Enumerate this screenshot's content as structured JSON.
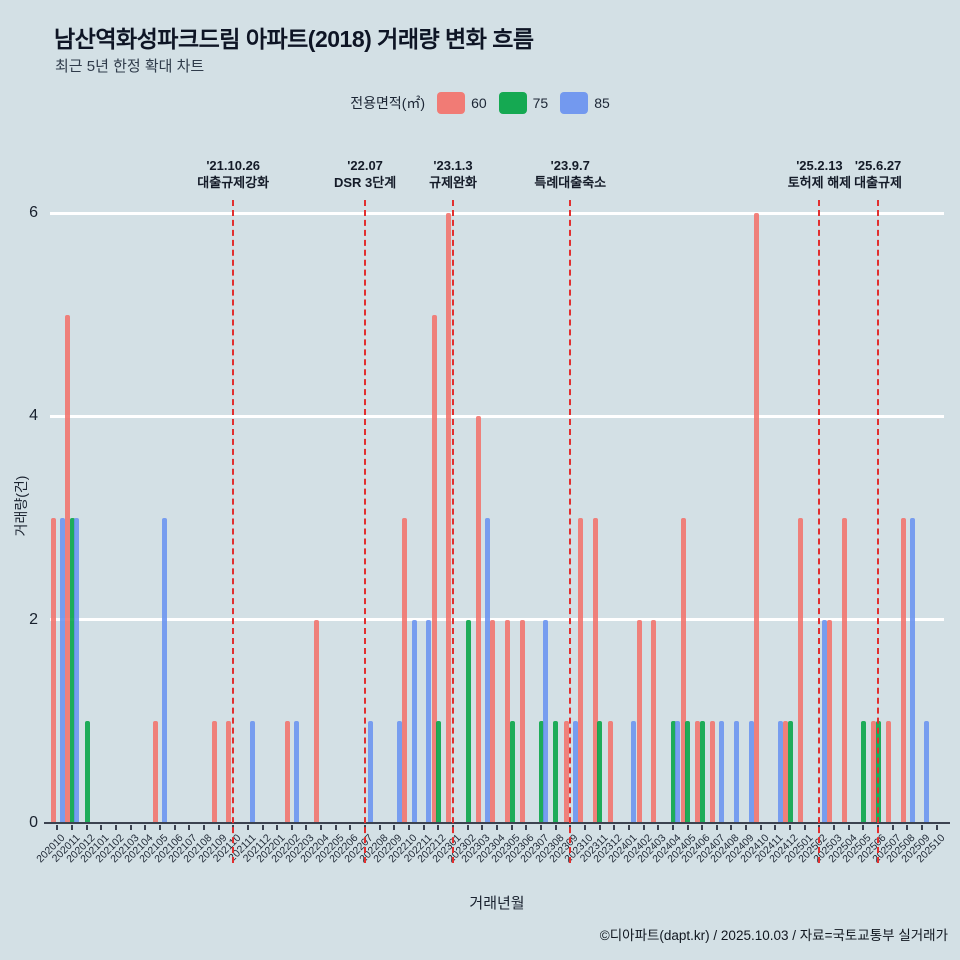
{
  "header": {
    "title": "남산역화성파크드림 아파트(2018) 거래량 변화 흐름",
    "subtitle": "최근 5년 한정 확대 차트"
  },
  "legend": {
    "label": "전용면적(㎡)"
  },
  "axes": {
    "ylabel": "거래량(건)",
    "xlabel": "거래년월"
  },
  "footer": {
    "credit": "©디아파트(dapt.kr) / 2025.10.03 / 자료=국토교통부 실거래가"
  },
  "chart_data": {
    "type": "bar",
    "title": "남산역화성파크드림 아파트(2018) 거래량 변화 흐름",
    "xlabel": "거래년월",
    "ylabel": "거래량(건)",
    "ylim": [
      0,
      6
    ],
    "yticks": [
      0,
      2,
      4,
      6
    ],
    "grid": "horizontal-white",
    "legend_position": "top",
    "background": "#d3e0e5",
    "gridline_color": "#ffffff",
    "annotation_line_color": "#e12f2f",
    "categories": [
      "202010",
      "202011",
      "202012",
      "202101",
      "202102",
      "202103",
      "202104",
      "202105",
      "202106",
      "202107",
      "202108",
      "202109",
      "202110",
      "202111",
      "202112",
      "202201",
      "202202",
      "202203",
      "202204",
      "202205",
      "202206",
      "202207",
      "202208",
      "202209",
      "202210",
      "202211",
      "202212",
      "202301",
      "202302",
      "202303",
      "202304",
      "202305",
      "202306",
      "202307",
      "202308",
      "202309",
      "202310",
      "202311",
      "202312",
      "202401",
      "202402",
      "202403",
      "202404",
      "202405",
      "202406",
      "202407",
      "202408",
      "202409",
      "202410",
      "202411",
      "202412",
      "202501",
      "202502",
      "202503",
      "202504",
      "202505",
      "202506",
      "202507",
      "202508",
      "202509",
      "202510"
    ],
    "series": [
      {
        "name": "60",
        "color": "#f3726b",
        "values": [
          3,
          5,
          0,
          0,
          0,
          0,
          0,
          1,
          0,
          0,
          0,
          1,
          1,
          0,
          0,
          0,
          1,
          0,
          2,
          0,
          0,
          0,
          0,
          0,
          3,
          0,
          5,
          6,
          0,
          4,
          2,
          2,
          2,
          0,
          0,
          1,
          3,
          3,
          1,
          0,
          2,
          2,
          0,
          3,
          1,
          1,
          0,
          0,
          6,
          0,
          1,
          3,
          0,
          2,
          3,
          0,
          1,
          1,
          3,
          0,
          0
        ]
      },
      {
        "name": "75",
        "color": "#04a445",
        "values": [
          0,
          3,
          1,
          0,
          0,
          0,
          0,
          0,
          0,
          0,
          0,
          0,
          0,
          0,
          0,
          0,
          0,
          0,
          0,
          0,
          0,
          0,
          0,
          0,
          0,
          0,
          1,
          0,
          2,
          0,
          0,
          1,
          0,
          1,
          1,
          0,
          0,
          1,
          0,
          0,
          0,
          0,
          1,
          1,
          1,
          0,
          0,
          0,
          0,
          0,
          1,
          0,
          0,
          0,
          0,
          1,
          1,
          0,
          0,
          0,
          0
        ]
      },
      {
        "name": "85",
        "color": "#6a93f0",
        "values": [
          3,
          3,
          0,
          0,
          0,
          0,
          0,
          3,
          0,
          0,
          0,
          0,
          0,
          1,
          0,
          0,
          1,
          0,
          0,
          0,
          0,
          1,
          0,
          1,
          2,
          2,
          0,
          0,
          0,
          3,
          0,
          0,
          0,
          2,
          0,
          1,
          0,
          0,
          0,
          1,
          0,
          0,
          1,
          0,
          0,
          1,
          1,
          1,
          0,
          1,
          0,
          0,
          2,
          0,
          0,
          0,
          0,
          0,
          3,
          1,
          0
        ]
      }
    ],
    "annotations": [
      {
        "month": "202110",
        "date": "'21.10.26",
        "label": "대출규제강화"
      },
      {
        "month": "202207",
        "date": "'22.07",
        "label": "DSR 3단계"
      },
      {
        "month": "202301",
        "date": "'23.1.3",
        "label": "규제완화"
      },
      {
        "month": "202309",
        "date": "'23.9.7",
        "label": "특례대출축소"
      },
      {
        "month": "202502",
        "date": "'25.2.13",
        "label": "토허제 해제"
      },
      {
        "month": "202506",
        "date": "'25.6.27",
        "label": "대출규제"
      }
    ]
  }
}
